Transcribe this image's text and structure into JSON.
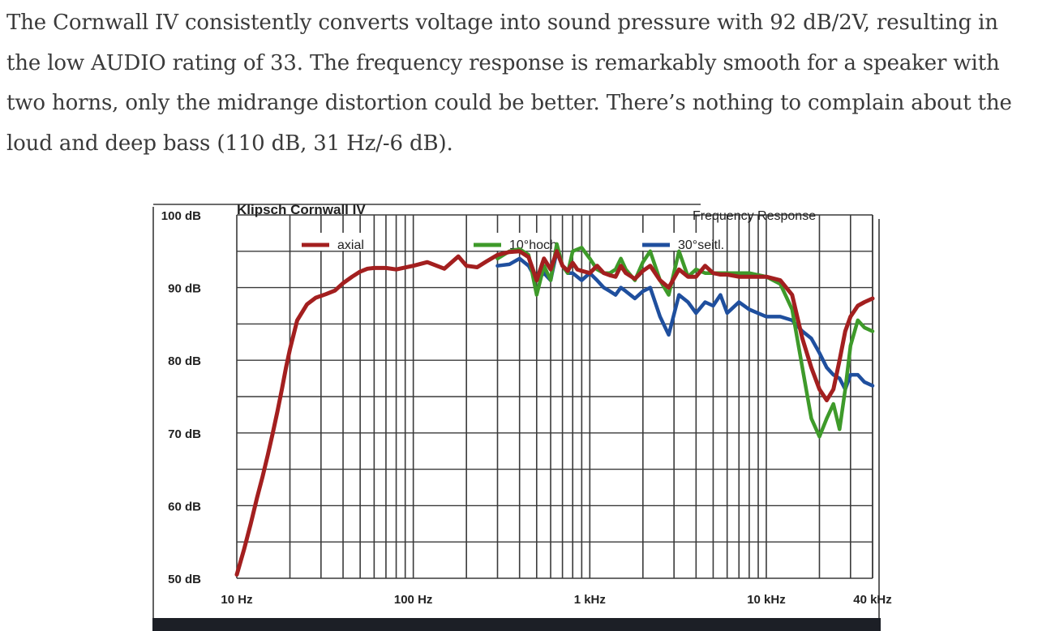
{
  "article": {
    "paragraph": "The Cornwall IV consistently converts voltage into sound pressure with 92 dB/2V, resulting in the low AUDIO rating of 33. The frequency response is remarkably smooth for a speaker with two horns, only the midrange distortion could be better. There’s nothing to complain about the loud and deep bass (110 dB, 31 Hz/-6 dB)."
  },
  "chart_data": {
    "type": "line",
    "title": "Frequency Response",
    "subtitle": "Klipsch Cornwall IV",
    "xscale": "log",
    "xlim": [
      10,
      40000
    ],
    "ylim": [
      50,
      100
    ],
    "grid": true,
    "legend_position": "top",
    "xticks": [
      {
        "value": 10,
        "label": "10 Hz"
      },
      {
        "value": 100,
        "label": "100 Hz"
      },
      {
        "value": 1000,
        "label": "1 kHz"
      },
      {
        "value": 10000,
        "label": "10 kHz"
      },
      {
        "value": 40000,
        "label": "40 kHz"
      }
    ],
    "yticks": [
      {
        "value": 100,
        "label": "100 dB"
      },
      {
        "value": 90,
        "label": "90 dB"
      },
      {
        "value": 80,
        "label": "80 dB"
      },
      {
        "value": 70,
        "label": "70 dB"
      },
      {
        "value": 60,
        "label": "60 dB"
      },
      {
        "value": 50,
        "label": "50 dB"
      }
    ],
    "series": [
      {
        "name": "axial",
        "color": "#a31f1f",
        "x": [
          10,
          11,
          12,
          13,
          14,
          15,
          16,
          17,
          18,
          19,
          20,
          22,
          25,
          28,
          32,
          36,
          40,
          45,
          50,
          55,
          60,
          70,
          80,
          100,
          120,
          150,
          180,
          200,
          230,
          260,
          300,
          350,
          400,
          450,
          500,
          550,
          600,
          650,
          700,
          750,
          800,
          850,
          900,
          1000,
          1100,
          1200,
          1300,
          1400,
          1500,
          1600,
          1800,
          2000,
          2200,
          2500,
          2800,
          3200,
          3600,
          4000,
          4500,
          5000,
          5500,
          6000,
          7000,
          8000,
          10000,
          12000,
          14000,
          16000,
          18000,
          20000,
          22000,
          24000,
          26000,
          28000,
          30000,
          33000,
          36000,
          40000
        ],
        "y": [
          50.5,
          54,
          57.5,
          61,
          64,
          67,
          70,
          73,
          76,
          79,
          81.5,
          85.5,
          87.7,
          88.6,
          89.1,
          89.6,
          90.6,
          91.5,
          92.2,
          92.6,
          92.7,
          92.7,
          92.5,
          93.0,
          93.5,
          92.6,
          94.3,
          93.0,
          92.8,
          93.6,
          94.5,
          94.9,
          95.0,
          94.2,
          91.0,
          94.0,
          92.5,
          95.0,
          93.0,
          92.3,
          93.4,
          92.5,
          92.3,
          92.0,
          93.0,
          92.0,
          91.7,
          91.5,
          93.0,
          92.0,
          91.2,
          92.3,
          93.0,
          91.0,
          90.0,
          92.5,
          91.5,
          91.5,
          93.0,
          92.0,
          91.8,
          91.8,
          91.5,
          91.5,
          91.5,
          91.0,
          89.0,
          83.0,
          79.0,
          76.0,
          74.5,
          76.0,
          80.0,
          84.0,
          86.0,
          87.5,
          88.0,
          88.5
        ]
      },
      {
        "name": "10°hoch",
        "color": "#3e9a2a",
        "x": [
          300,
          350,
          400,
          450,
          500,
          550,
          600,
          650,
          700,
          750,
          800,
          900,
          1000,
          1100,
          1200,
          1300,
          1400,
          1500,
          1600,
          1800,
          2000,
          2200,
          2500,
          2800,
          3200,
          3600,
          4000,
          4500,
          5000,
          5500,
          6000,
          7000,
          8000,
          10000,
          12000,
          14000,
          16000,
          18000,
          20000,
          22000,
          24000,
          26000,
          28000,
          30000,
          33000,
          36000,
          40000
        ],
        "y": [
          94.0,
          95.0,
          95.3,
          94.5,
          89.0,
          93.0,
          91.0,
          96.0,
          93.0,
          92.0,
          95.0,
          95.5,
          94.0,
          92.5,
          92.0,
          92.0,
          92.5,
          94.0,
          92.5,
          91.0,
          93.5,
          95.0,
          91.0,
          89.0,
          95.0,
          91.5,
          92.5,
          92.0,
          92.0,
          92.0,
          92.0,
          92.0,
          92.0,
          91.5,
          90.5,
          87.0,
          79.0,
          72.0,
          69.5,
          72.0,
          74.0,
          70.5,
          76.0,
          82.0,
          85.5,
          84.5,
          84.0
        ]
      },
      {
        "name": "30°seitl.",
        "color": "#1f4f9e",
        "x": [
          300,
          350,
          400,
          450,
          500,
          550,
          600,
          650,
          700,
          750,
          800,
          900,
          1000,
          1100,
          1200,
          1300,
          1400,
          1500,
          1600,
          1800,
          2000,
          2200,
          2500,
          2800,
          3200,
          3600,
          4000,
          4500,
          5000,
          5500,
          6000,
          7000,
          8000,
          10000,
          12000,
          14000,
          16000,
          18000,
          20000,
          22000,
          24000,
          26000,
          28000,
          30000,
          33000,
          36000,
          40000
        ],
        "y": [
          93.0,
          93.2,
          94.0,
          93.0,
          91.0,
          92.0,
          91.0,
          95.0,
          93.0,
          92.0,
          92.0,
          91.0,
          92.0,
          91.0,
          90.0,
          89.5,
          89.0,
          90.0,
          89.5,
          88.5,
          89.5,
          90.0,
          86.0,
          83.5,
          89.0,
          88.0,
          86.5,
          88.0,
          87.5,
          89.0,
          86.5,
          88.0,
          87.0,
          86.0,
          86.0,
          85.5,
          84.0,
          83.0,
          81.0,
          79.0,
          78.0,
          77.5,
          76.0,
          78.0,
          78.0,
          77.0,
          76.5
        ]
      }
    ]
  }
}
